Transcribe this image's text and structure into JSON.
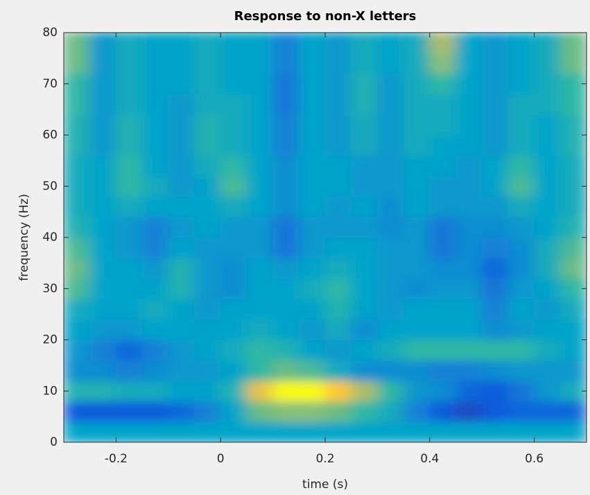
{
  "chart_data": {
    "type": "heatmap",
    "title": "Response to non-X letters",
    "xlabel": "time (s)",
    "ylabel": "frequency (Hz)",
    "xlim": [
      -0.3,
      0.7
    ],
    "ylim": [
      0,
      80
    ],
    "xticks": [
      -0.2,
      0,
      0.2,
      0.4,
      0.6
    ],
    "yticks": [
      0,
      10,
      20,
      30,
      40,
      50,
      60,
      70,
      80
    ],
    "colormap": "parula",
    "zlim": [
      0,
      1
    ],
    "z": [
      [
        0.45,
        0.45,
        0.45,
        0.45,
        0.45,
        0.45,
        0.45,
        0.45,
        0.45,
        0.45,
        0.45,
        0.45,
        0.45,
        0.45,
        0.45,
        0.45,
        0.45,
        0.45,
        0.45,
        0.45
      ],
      [
        0.15,
        0.15,
        0.15,
        0.15,
        0.2,
        0.3,
        0.45,
        0.7,
        0.75,
        0.75,
        0.7,
        0.6,
        0.5,
        0.3,
        0.15,
        0.1,
        0.15,
        0.2,
        0.2,
        0.2
      ],
      [
        0.55,
        0.55,
        0.5,
        0.5,
        0.45,
        0.45,
        0.55,
        0.9,
        1.0,
        1.0,
        0.95,
        0.8,
        0.6,
        0.4,
        0.35,
        0.2,
        0.15,
        0.25,
        0.4,
        0.5
      ],
      [
        0.35,
        0.35,
        0.3,
        0.35,
        0.4,
        0.4,
        0.45,
        0.6,
        0.7,
        0.65,
        0.5,
        0.35,
        0.35,
        0.35,
        0.3,
        0.3,
        0.35,
        0.4,
        0.4,
        0.4
      ],
      [
        0.4,
        0.3,
        0.2,
        0.3,
        0.4,
        0.45,
        0.5,
        0.6,
        0.55,
        0.45,
        0.4,
        0.45,
        0.5,
        0.6,
        0.6,
        0.6,
        0.6,
        0.6,
        0.5,
        0.45
      ],
      [
        0.45,
        0.4,
        0.4,
        0.45,
        0.45,
        0.45,
        0.45,
        0.5,
        0.45,
        0.4,
        0.5,
        0.35,
        0.45,
        0.45,
        0.45,
        0.45,
        0.35,
        0.4,
        0.45,
        0.45
      ],
      [
        0.5,
        0.45,
        0.45,
        0.5,
        0.45,
        0.4,
        0.45,
        0.45,
        0.45,
        0.45,
        0.55,
        0.45,
        0.4,
        0.45,
        0.45,
        0.45,
        0.3,
        0.45,
        0.4,
        0.5
      ],
      [
        0.65,
        0.45,
        0.45,
        0.45,
        0.55,
        0.4,
        0.35,
        0.45,
        0.45,
        0.5,
        0.6,
        0.45,
        0.4,
        0.35,
        0.4,
        0.4,
        0.25,
        0.4,
        0.45,
        0.6
      ],
      [
        0.7,
        0.45,
        0.45,
        0.4,
        0.55,
        0.4,
        0.35,
        0.45,
        0.4,
        0.45,
        0.5,
        0.45,
        0.4,
        0.4,
        0.35,
        0.35,
        0.2,
        0.35,
        0.5,
        0.7
      ],
      [
        0.65,
        0.45,
        0.4,
        0.3,
        0.45,
        0.4,
        0.4,
        0.4,
        0.25,
        0.4,
        0.45,
        0.45,
        0.4,
        0.4,
        0.25,
        0.35,
        0.3,
        0.35,
        0.5,
        0.65
      ],
      [
        0.55,
        0.45,
        0.4,
        0.3,
        0.4,
        0.45,
        0.4,
        0.4,
        0.25,
        0.4,
        0.4,
        0.4,
        0.35,
        0.4,
        0.25,
        0.35,
        0.35,
        0.4,
        0.45,
        0.55
      ],
      [
        0.5,
        0.45,
        0.5,
        0.45,
        0.45,
        0.45,
        0.5,
        0.45,
        0.35,
        0.45,
        0.4,
        0.45,
        0.35,
        0.45,
        0.4,
        0.4,
        0.4,
        0.5,
        0.45,
        0.5
      ],
      [
        0.5,
        0.45,
        0.6,
        0.5,
        0.4,
        0.45,
        0.65,
        0.45,
        0.35,
        0.45,
        0.45,
        0.4,
        0.4,
        0.45,
        0.4,
        0.4,
        0.45,
        0.65,
        0.45,
        0.5
      ],
      [
        0.5,
        0.45,
        0.6,
        0.45,
        0.4,
        0.5,
        0.6,
        0.45,
        0.35,
        0.45,
        0.45,
        0.4,
        0.4,
        0.45,
        0.45,
        0.4,
        0.45,
        0.6,
        0.45,
        0.5
      ],
      [
        0.55,
        0.4,
        0.55,
        0.45,
        0.4,
        0.55,
        0.5,
        0.45,
        0.3,
        0.45,
        0.4,
        0.5,
        0.4,
        0.5,
        0.45,
        0.45,
        0.4,
        0.5,
        0.45,
        0.55
      ],
      [
        0.55,
        0.4,
        0.55,
        0.45,
        0.4,
        0.55,
        0.5,
        0.45,
        0.3,
        0.45,
        0.4,
        0.5,
        0.4,
        0.5,
        0.5,
        0.45,
        0.4,
        0.5,
        0.45,
        0.55
      ],
      [
        0.6,
        0.4,
        0.5,
        0.45,
        0.4,
        0.5,
        0.5,
        0.45,
        0.25,
        0.45,
        0.4,
        0.55,
        0.4,
        0.5,
        0.5,
        0.45,
        0.4,
        0.5,
        0.5,
        0.6
      ],
      [
        0.6,
        0.4,
        0.5,
        0.45,
        0.45,
        0.5,
        0.45,
        0.45,
        0.25,
        0.45,
        0.4,
        0.55,
        0.4,
        0.5,
        0.6,
        0.45,
        0.4,
        0.45,
        0.5,
        0.6
      ],
      [
        0.7,
        0.4,
        0.5,
        0.45,
        0.45,
        0.5,
        0.45,
        0.45,
        0.3,
        0.45,
        0.4,
        0.5,
        0.45,
        0.5,
        0.75,
        0.45,
        0.4,
        0.45,
        0.5,
        0.7
      ],
      [
        0.7,
        0.4,
        0.5,
        0.45,
        0.45,
        0.5,
        0.45,
        0.45,
        0.3,
        0.45,
        0.4,
        0.5,
        0.45,
        0.5,
        0.8,
        0.45,
        0.4,
        0.45,
        0.5,
        0.7
      ]
    ]
  }
}
